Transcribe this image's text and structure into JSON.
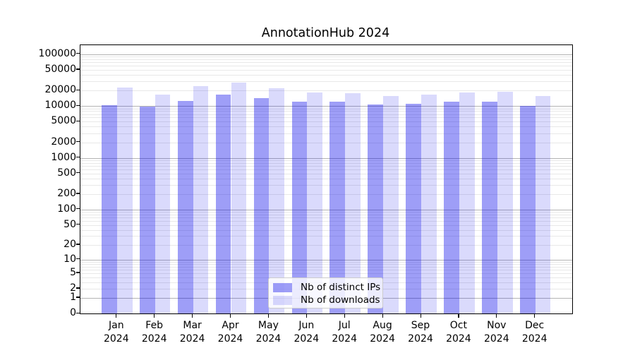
{
  "chart_data": {
    "type": "bar",
    "title": "AnnotationHub 2024",
    "categories": [
      "Jan 2024",
      "Feb 2024",
      "Mar 2024",
      "Apr 2024",
      "May 2024",
      "Jun 2024",
      "Jul 2024",
      "Aug 2024",
      "Sep 2024",
      "Oct 2024",
      "Nov 2024",
      "Dec 2024"
    ],
    "x_tick_line1": [
      "Jan",
      "Feb",
      "Mar",
      "Apr",
      "May",
      "Jun",
      "Jul",
      "Aug",
      "Sep",
      "Oct",
      "Nov",
      "Dec"
    ],
    "x_tick_line2": [
      "2024",
      "2024",
      "2024",
      "2024",
      "2024",
      "2024",
      "2024",
      "2024",
      "2024",
      "2024",
      "2024",
      "2024"
    ],
    "series": [
      {
        "name": "Nb of distinct IPs",
        "color": "#0000eb",
        "alpha": 0.38,
        "values": [
          10500,
          9700,
          12400,
          16500,
          14000,
          12000,
          12100,
          10700,
          11100,
          12100,
          12000,
          10100
        ]
      },
      {
        "name": "Nb of downloads",
        "color": "#0000eb",
        "alpha": 0.145,
        "values": [
          23000,
          16500,
          24000,
          28100,
          21800,
          18200,
          17800,
          15800,
          16500,
          18300,
          18900,
          15800
        ]
      }
    ],
    "xlabel": "",
    "ylabel": "",
    "yscale": "symlog-ln(1+v)",
    "ylim": [
      0,
      150000
    ],
    "y_tick_values": [
      0,
      1,
      2,
      5,
      10,
      20,
      50,
      100,
      200,
      500,
      1000,
      2000,
      5000,
      10000,
      20000,
      50000,
      100000
    ],
    "grid": true,
    "grid_major_values": [
      1,
      10,
      100,
      1000,
      10000,
      100000
    ],
    "legend_position": "lower center inside"
  },
  "colors": {
    "background": "#ffffff",
    "bar_distinct_ips_on_white": "#9e9ef7",
    "bar_downloads_on_white": "#dadafc",
    "grid_major": "#b3b3b3",
    "grid_minor": "#e8e8e8",
    "axis": "#000000",
    "legend_border": "#cccccc"
  }
}
